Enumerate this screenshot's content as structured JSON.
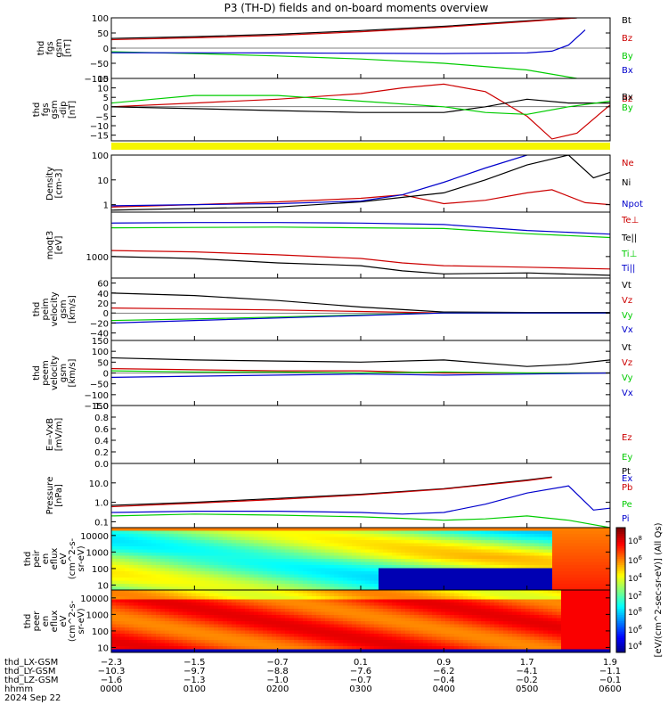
{
  "title": "P3 (TH-D) fields and on-board moments overview",
  "colorbar_label": "[eV/(cm^2-sec-sr-eV)] (All Qs)",
  "chart_data": [
    {
      "type": "line",
      "ylabel": [
        "thd",
        "fgs",
        "gsm",
        "[nT]"
      ],
      "ylim": [
        -100,
        100
      ],
      "log": false,
      "ytick_labels": [
        "100",
        "50",
        "0",
        "−50",
        "−100"
      ],
      "ytick_values": [
        100,
        50,
        0,
        -50,
        -100
      ],
      "series": [
        {
          "name": "Bt",
          "color": "#000000",
          "x": [
            0,
            1,
            2,
            3,
            4,
            5,
            5.6
          ],
          "y": [
            32,
            38,
            46,
            58,
            72,
            90,
            100
          ]
        },
        {
          "name": "Bz",
          "color": "#cc0000",
          "x": [
            0,
            1,
            2,
            3,
            4,
            5,
            5.6
          ],
          "y": [
            28,
            34,
            42,
            54,
            69,
            88,
            100
          ]
        },
        {
          "name": "By",
          "color": "#00cc00",
          "x": [
            0,
            1,
            2,
            3,
            4,
            5,
            5.6
          ],
          "y": [
            -12,
            -18,
            -26,
            -36,
            -50,
            -72,
            -100
          ]
        },
        {
          "name": "Bx",
          "color": "#0000cc",
          "x": [
            0,
            2,
            4,
            5,
            5.3,
            5.5,
            5.7
          ],
          "y": [
            -15,
            -16,
            -18,
            -16,
            -10,
            10,
            60
          ]
        }
      ]
    },
    {
      "type": "line",
      "ylabel": [
        "thd",
        "fgs",
        "gsm",
        "-dip",
        "[nT]"
      ],
      "ylim": [
        -18,
        15
      ],
      "log": false,
      "ytick_labels": [
        "15",
        "10",
        "5",
        "0",
        "−5",
        "−10",
        "−15"
      ],
      "ytick_values": [
        15,
        10,
        5,
        0,
        -5,
        -10,
        -15
      ],
      "series": [
        {
          "name": "Bz",
          "color": "#cc0000",
          "x": [
            0,
            1,
            2,
            3,
            3.5,
            4,
            4.5,
            5,
            5.3,
            5.6,
            6
          ],
          "y": [
            0,
            2,
            4,
            7,
            10,
            12,
            8,
            -5,
            -17,
            -14,
            1
          ]
        },
        {
          "name": "Bx",
          "color": "#000000",
          "x": [
            0,
            1,
            2,
            3,
            4,
            4.5,
            5,
            5.5,
            6
          ],
          "y": [
            0,
            -1,
            -2,
            -3,
            -3,
            0,
            4,
            2,
            2
          ]
        },
        {
          "name": "By",
          "color": "#00cc00",
          "x": [
            0,
            0.5,
            1,
            2,
            3,
            4,
            4.5,
            5,
            5.5,
            6
          ],
          "y": [
            2,
            4,
            6,
            6,
            3,
            0,
            -3,
            -4,
            0,
            3
          ]
        }
      ]
    },
    {
      "type": "line",
      "ylabel": [
        "Density",
        "[cm-3]"
      ],
      "ylim": [
        0.5,
        100
      ],
      "log": true,
      "ytick_labels": [
        "100",
        "10",
        "1"
      ],
      "ytick_values": [
        100,
        10,
        1
      ],
      "series": [
        {
          "name": "Ne",
          "color": "#cc0000",
          "x": [
            0,
            1,
            2,
            3,
            3.5,
            4,
            4.5,
            5,
            5.3,
            5.7,
            6
          ],
          "y": [
            0.8,
            1.0,
            1.3,
            1.8,
            2.5,
            1.1,
            1.5,
            3,
            4,
            1.2,
            1.0
          ]
        },
        {
          "name": "Ni",
          "color": "#000000",
          "x": [
            0,
            1,
            2,
            3,
            4,
            4.5,
            5,
            5.5,
            5.8,
            6
          ],
          "y": [
            0.6,
            0.7,
            0.8,
            1.3,
            3,
            10,
            40,
            100,
            12,
            20
          ]
        },
        {
          "name": "Npot",
          "color": "#0000cc",
          "x": [
            0,
            1,
            2,
            3,
            3.5,
            4,
            4.5,
            5
          ],
          "y": [
            0.9,
            1.0,
            1.1,
            1.4,
            2.5,
            8,
            30,
            100
          ]
        }
      ]
    },
    {
      "type": "line",
      "ylabel": [
        "moqt3",
        "[eV]"
      ],
      "ylim": [
        300,
        12000
      ],
      "log": true,
      "ytick_labels": [
        "1000"
      ],
      "ytick_values": [
        1000
      ],
      "series": [
        {
          "name": "Te⊥",
          "color": "#cc0000",
          "x": [
            0,
            1,
            2,
            3,
            3.5,
            4,
            5,
            6
          ],
          "y": [
            1400,
            1300,
            1100,
            900,
            700,
            600,
            550,
            500
          ]
        },
        {
          "name": "Te||",
          "color": "#000000",
          "x": [
            0,
            1,
            2,
            3,
            3.5,
            4,
            5,
            6
          ],
          "y": [
            1000,
            900,
            700,
            600,
            450,
            380,
            400,
            350
          ]
        },
        {
          "name": "Ti⊥",
          "color": "#00cc00",
          "x": [
            0,
            1,
            2,
            3,
            4,
            5,
            6
          ],
          "y": [
            5000,
            5100,
            5200,
            5000,
            4800,
            3600,
            2900
          ]
        },
        {
          "name": "Ti||",
          "color": "#0000cc",
          "x": [
            0,
            1,
            2,
            3,
            4,
            5,
            6
          ],
          "y": [
            6500,
            6700,
            6700,
            6500,
            6000,
            4300,
            3500
          ]
        }
      ]
    },
    {
      "type": "line",
      "ylabel": [
        "thd",
        "peim",
        "velocity",
        "gsm",
        "[km/s]"
      ],
      "ylim": [
        -55,
        70
      ],
      "log": false,
      "ytick_labels": [
        "60",
        "40",
        "20",
        "0",
        "−20",
        "−40"
      ],
      "ytick_values": [
        60,
        40,
        20,
        0,
        -20,
        -40
      ],
      "series": [
        {
          "name": "Vt",
          "color": "#000000",
          "x": [
            0,
            1,
            2,
            3,
            4,
            5,
            6
          ],
          "y": [
            40,
            35,
            25,
            12,
            2,
            1,
            1
          ]
        },
        {
          "name": "Vz",
          "color": "#cc0000",
          "x": [
            0,
            1,
            2,
            3,
            4,
            5,
            6
          ],
          "y": [
            10,
            8,
            6,
            3,
            0,
            0,
            0
          ]
        },
        {
          "name": "Vy",
          "color": "#00cc00",
          "x": [
            0,
            1,
            2,
            3,
            4,
            5,
            6
          ],
          "y": [
            -15,
            -12,
            -8,
            -4,
            0,
            0,
            0
          ]
        },
        {
          "name": "Vx",
          "color": "#0000cc",
          "x": [
            0,
            1,
            2,
            3,
            4,
            5,
            6
          ],
          "y": [
            -20,
            -15,
            -10,
            -5,
            0,
            0,
            0
          ]
        }
      ]
    },
    {
      "type": "line",
      "ylabel": [
        "thd",
        "peem",
        "velocity",
        "gsm",
        "[km/s]"
      ],
      "ylim": [
        -150,
        150
      ],
      "log": false,
      "ytick_labels": [
        "150",
        "100",
        "50",
        "0",
        "−50",
        "−100",
        "−150"
      ],
      "ytick_values": [
        150,
        100,
        50,
        0,
        -50,
        -100,
        -150
      ],
      "series": [
        {
          "name": "Vt",
          "color": "#000000",
          "x": [
            0,
            1,
            2,
            3,
            4,
            5,
            5.5,
            6
          ],
          "y": [
            70,
            60,
            55,
            50,
            60,
            30,
            40,
            60
          ]
        },
        {
          "name": "Vz",
          "color": "#cc0000",
          "x": [
            0,
            1,
            2,
            3,
            4,
            5,
            6
          ],
          "y": [
            20,
            15,
            10,
            10,
            0,
            0,
            0
          ]
        },
        {
          "name": "Vy",
          "color": "#00cc00",
          "x": [
            0,
            1,
            2,
            3,
            4,
            5,
            6
          ],
          "y": [
            10,
            5,
            5,
            0,
            5,
            0,
            0
          ]
        },
        {
          "name": "Vx",
          "color": "#0000cc",
          "x": [
            0,
            1,
            2,
            3,
            4,
            5,
            6
          ],
          "y": [
            -20,
            -15,
            -10,
            -5,
            -10,
            -5,
            0
          ]
        }
      ]
    },
    {
      "type": "line",
      "ylabel": [
        "E=-VxB",
        "[mV/m]"
      ],
      "ylim": [
        0,
        1
      ],
      "log": false,
      "ytick_labels": [
        "1.0",
        "0.8",
        "0.6",
        "0.4",
        "0.2",
        "0.0"
      ],
      "ytick_values": [
        1.0,
        0.8,
        0.6,
        0.4,
        0.2,
        0.0
      ],
      "series": [
        {
          "name": "Ez",
          "color": "#cc0000",
          "x": [],
          "y": []
        },
        {
          "name": "Ey",
          "color": "#00cc00",
          "x": [],
          "y": []
        },
        {
          "name": "Ex",
          "color": "#0000cc",
          "x": [],
          "y": []
        }
      ]
    },
    {
      "type": "line",
      "ylabel": [
        "Pressure",
        "[nPa]"
      ],
      "ylim": [
        0.05,
        100
      ],
      "log": true,
      "ytick_labels": [
        "10.0",
        "1.0",
        "0.1"
      ],
      "ytick_values": [
        10,
        1,
        0.1
      ],
      "series": [
        {
          "name": "Pt",
          "color": "#000000",
          "x": [
            0,
            1,
            2,
            3,
            4,
            5,
            5.3
          ],
          "y": [
            0.7,
            1.0,
            1.6,
            2.6,
            5,
            14,
            20
          ]
        },
        {
          "name": "Pb",
          "color": "#cc0000",
          "x": [
            0,
            1,
            2,
            3,
            4,
            5,
            5.3
          ],
          "y": [
            0.6,
            0.9,
            1.4,
            2.4,
            4.8,
            13,
            19
          ]
        },
        {
          "name": "Pe",
          "color": "#00cc00",
          "x": [
            0,
            1,
            2,
            3,
            3.5,
            4,
            4.5,
            5,
            5.5,
            6
          ],
          "y": [
            0.2,
            0.25,
            0.22,
            0.18,
            0.15,
            0.12,
            0.14,
            0.2,
            0.12,
            0.05
          ]
        },
        {
          "name": "Pi",
          "color": "#0000cc",
          "x": [
            0,
            1,
            2,
            3,
            3.5,
            4,
            4.5,
            5,
            5.5,
            5.8,
            6
          ],
          "y": [
            0.3,
            0.35,
            0.35,
            0.3,
            0.25,
            0.3,
            0.8,
            3,
            7,
            0.4,
            0.5
          ]
        }
      ]
    },
    {
      "type": "heatmap",
      "ylabel": [
        "thd",
        "peir",
        "en",
        "eflux",
        "eV",
        "(cm^2-s-",
        "sr-eV)"
      ],
      "ylim": [
        5,
        30000
      ],
      "log": true,
      "ytick_labels": [
        "10000",
        "1000",
        "100",
        "10"
      ],
      "ytick_values": [
        10000,
        1000,
        100,
        10
      ],
      "colorbar_ticks": [
        "10^8",
        "10^6",
        "10^4",
        "10^2"
      ]
    },
    {
      "type": "heatmap",
      "ylabel": [
        "thd",
        "peer",
        "en",
        "eflux",
        "eV",
        "(cm^2-s-",
        "sr-eV)"
      ],
      "ylim": [
        5,
        30000
      ],
      "log": true,
      "ytick_labels": [
        "10000",
        "1000",
        "100",
        "10"
      ],
      "ytick_values": [
        10000,
        1000,
        100,
        10
      ],
      "colorbar_ticks": [
        "10^8",
        "10^6",
        "10^4",
        "10^2"
      ]
    }
  ],
  "xaxis": {
    "rows": [
      {
        "label": "thd_LX-GSM",
        "values": [
          "−2.3",
          "−1.5",
          "−0.7",
          "0.1",
          "0.9",
          "1.7",
          "1.9"
        ]
      },
      {
        "label": "thd_LY-GSM",
        "values": [
          "−10.3",
          "−9.7",
          "−8.8",
          "−7.6",
          "−6.2",
          "−4.1",
          "−1.1"
        ]
      },
      {
        "label": "thd_LZ-GSM",
        "values": [
          "−1.6",
          "−1.3",
          "−1.0",
          "−0.7",
          "−0.4",
          "−0.2",
          "−0.1"
        ]
      },
      {
        "label": "hhmm",
        "values": [
          "0000",
          "0100",
          "0200",
          "0300",
          "0400",
          "0500",
          "0600"
        ]
      }
    ],
    "date": "2024 Sep 22"
  }
}
